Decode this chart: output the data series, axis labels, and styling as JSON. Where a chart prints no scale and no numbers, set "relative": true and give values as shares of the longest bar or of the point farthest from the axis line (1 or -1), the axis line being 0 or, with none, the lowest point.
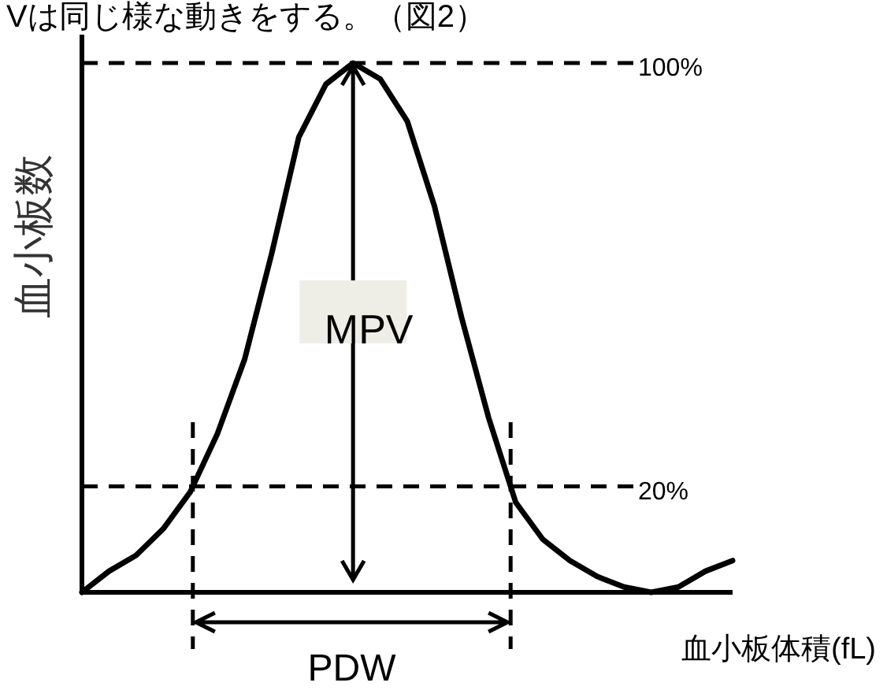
{
  "chart_data": {
    "type": "line",
    "relative": true,
    "title": "Vは同じ様な動きをする。（図2）",
    "xlabel": "血小板体積(fL)",
    "ylabel": "血小板数",
    "categories": [
      null,
      null,
      null,
      null,
      null,
      null,
      null,
      null,
      null,
      null,
      null,
      null,
      null,
      null,
      null,
      null,
      null,
      null,
      null,
      null,
      null,
      null,
      null,
      null,
      null
    ],
    "series": [
      {
        "color": "#000000",
        "values": [
          0,
          0.04,
          0.07,
          0.12,
          0.19,
          0.3,
          0.44,
          0.64,
          0.86,
          0.96,
          1,
          0.97,
          0.89,
          0.73,
          0.52,
          0.33,
          0.17,
          0.1,
          0.06,
          0.03,
          0.01,
          0,
          0.01,
          0.04,
          0.06
        ]
      }
    ],
    "ref_lines": [
      {
        "axis": "y",
        "value": 1,
        "label": "100%",
        "line_style": "dashed",
        "color": "#000000"
      },
      {
        "axis": "y",
        "value": 0.2,
        "label": "20%",
        "line_style": "dashed",
        "color": "#000000"
      }
    ],
    "annotations": [
      "MPV",
      "PDW"
    ],
    "marker": "none",
    "line_style": "solid"
  }
}
